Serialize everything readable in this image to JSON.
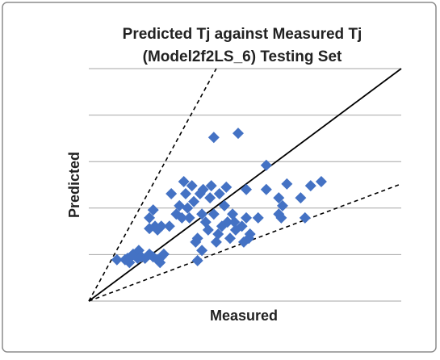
{
  "chart_data": {
    "type": "scatter",
    "title": "Predicted Tj against Measured Tj",
    "subtitle": "(Model2f2LS_6)  Testing Set",
    "y_label": "Predicted",
    "x_label": "Measured",
    "xlim": [
      0,
      5
    ],
    "ylim": [
      0,
      5
    ],
    "yticks": [
      0,
      1,
      2,
      3,
      4,
      5
    ],
    "grid": true,
    "color": "#4472c4",
    "x": [
      0.45,
      0.58,
      0.65,
      0.67,
      0.62,
      0.71,
      0.78,
      0.8,
      0.84,
      0.9,
      0.97,
      1.03,
      1.1,
      1.14,
      1.16,
      1.2,
      0.97,
      1.03,
      1.06,
      0.97,
      1.1,
      1.16,
      1.29,
      1.32,
      1.4,
      1.45,
      1.49,
      1.52,
      1.55,
      1.58,
      1.61,
      1.65,
      1.68,
      1.71,
      1.74,
      1.74,
      1.78,
      1.81,
      1.81,
      1.83,
      1.87,
      1.91,
      1.94,
      1.96,
      2.0,
      2.0,
      2.04,
      2.07,
      2.09,
      2.13,
      2.17,
      2.2,
      2.22,
      2.26,
      2.3,
      2.33,
      2.35,
      2.39,
      2.45,
      2.48,
      2.52,
      2.52,
      2.56,
      2.58,
      2.71,
      2.84,
      2.84,
      3.04,
      3.1,
      3.04,
      3.08,
      3.17,
      3.39,
      3.46,
      3.55,
      3.72
    ],
    "values": [
      0.89,
      0.89,
      0.83,
      0.95,
      0.92,
      1.01,
      0.92,
      1.09,
      0.95,
      0.92,
      1.01,
      0.95,
      0.89,
      0.83,
      0.95,
      1.01,
      1.79,
      1.96,
      1.61,
      1.56,
      1.53,
      1.61,
      1.61,
      2.31,
      1.87,
      2.05,
      1.79,
      2.57,
      2.31,
      2.0,
      1.79,
      2.48,
      2.14,
      1.27,
      1.35,
      0.87,
      2.31,
      1.87,
      1.09,
      2.4,
      1.7,
      1.53,
      2.22,
      2.48,
      3.52,
      1.87,
      1.27,
      1.44,
      2.31,
      1.61,
      2.05,
      2.45,
      1.7,
      1.35,
      1.87,
      1.7,
      1.53,
      3.61,
      1.61,
      1.27,
      2.4,
      1.79,
      1.35,
      1.44,
      1.79,
      2.92,
      2.4,
      2.22,
      2.05,
      1.87,
      1.79,
      2.52,
      2.22,
      1.79,
      2.48,
      2.57
    ],
    "reference_lines": [
      {
        "x": [
          0,
          5
        ],
        "y": [
          0,
          5
        ],
        "dashed": false
      },
      {
        "x": [
          0,
          2.04
        ],
        "y": [
          0,
          5
        ],
        "dashed": true
      },
      {
        "x": [
          0,
          5
        ],
        "y": [
          0,
          2.52
        ],
        "dashed": true
      }
    ]
  }
}
